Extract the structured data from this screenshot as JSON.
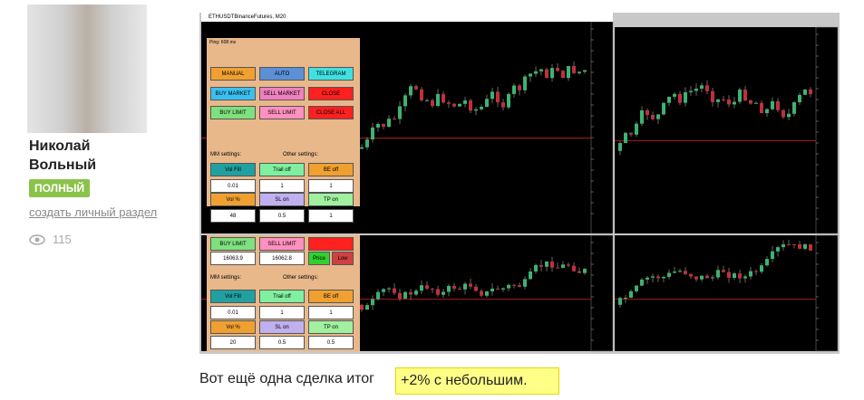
{
  "user": {
    "name_line1": "Николай",
    "name_line2": "Вольный",
    "badge": "ПОЛНЫЙ",
    "link": "создать личный раздел",
    "views": 115
  },
  "screenshot": {
    "window_title": "ETHUSDTBinanceFutures, M20",
    "status": "Ping: 608 ms",
    "panel_top": [
      [
        {
          "text": "MANUAL",
          "color": "#f0a030"
        },
        {
          "text": "AUTO",
          "color": "#5b8fd6"
        },
        {
          "text": "TELEGRAM",
          "color": "#40e0e0"
        }
      ],
      [
        {
          "text": "BUY MARKET",
          "color": "#3ac0f0"
        },
        {
          "text": "SELL MARKET",
          "color": "#f080c0"
        },
        {
          "text": "CLOSE",
          "color": "#ff2020"
        }
      ],
      [
        {
          "text": "BUY LIMIT",
          "color": "#7fe07f"
        },
        {
          "text": "SELL LIMIT",
          "color": "#ff90c0"
        },
        {
          "text": "CLOSE ALL",
          "color": "#ff2020"
        }
      ],
      [
        {
          "text": "MM settings:",
          "color": ""
        },
        {
          "text": "Other settings:",
          "color": ""
        }
      ],
      [
        {
          "text": "Vol Fill",
          "color": "#20a0a0"
        },
        {
          "text": "Trail off",
          "color": "#80f0a0"
        },
        {
          "text": "BE off",
          "color": "#f0a030"
        }
      ],
      [
        {
          "text": "0.01",
          "color": "#ffffff"
        },
        {
          "text": "1",
          "color": "#ffffff"
        },
        {
          "text": "1",
          "color": "#ffffff"
        }
      ],
      [
        {
          "text": "Vol %",
          "color": "#f0a030"
        },
        {
          "text": "SL on",
          "color": "#c0b0f0"
        },
        {
          "text": "TP on",
          "color": "#a0f0a0"
        }
      ],
      [
        {
          "text": "48",
          "color": "#ffffff"
        },
        {
          "text": "0.5",
          "color": "#ffffff"
        },
        {
          "text": "1",
          "color": "#ffffff"
        }
      ]
    ],
    "panel_bottom": [
      [
        {
          "text": "BUY LIMIT",
          "color": "#7fe07f"
        },
        {
          "text": "SELL LIMIT",
          "color": "#ff90c0"
        },
        {
          "text": "",
          "color": "#ff2020"
        }
      ],
      [
        {
          "text": "16063.9",
          "color": "#ffffff"
        },
        {
          "text": "16062.8",
          "color": "#ffffff"
        },
        {
          "text": "Price",
          "color": "#30d030"
        },
        {
          "text": "Low",
          "color": "#d04040"
        }
      ],
      [
        {
          "text": "MM settings:",
          "color": ""
        },
        {
          "text": "Other settings:",
          "color": ""
        }
      ],
      [
        {
          "text": "Vol Fill",
          "color": "#20a0a0"
        },
        {
          "text": "Trail off",
          "color": "#80f0a0"
        },
        {
          "text": "BE off",
          "color": "#f0a030"
        }
      ],
      [
        {
          "text": "0.01",
          "color": "#ffffff"
        },
        {
          "text": "1",
          "color": "#ffffff"
        },
        {
          "text": "1",
          "color": "#ffffff"
        }
      ],
      [
        {
          "text": "Vol %",
          "color": "#f0a030"
        },
        {
          "text": "SL on",
          "color": "#c0b0f0"
        },
        {
          "text": "TP on",
          "color": "#a0f0a0"
        }
      ],
      [
        {
          "text": "20",
          "color": "#ffffff"
        },
        {
          "text": "0.5",
          "color": "#ffffff"
        },
        {
          "text": "0.5",
          "color": "#ffffff"
        }
      ]
    ]
  },
  "post": {
    "text": "Вот ещё одна сделка итог",
    "highlight": "+2% с небольшим."
  }
}
